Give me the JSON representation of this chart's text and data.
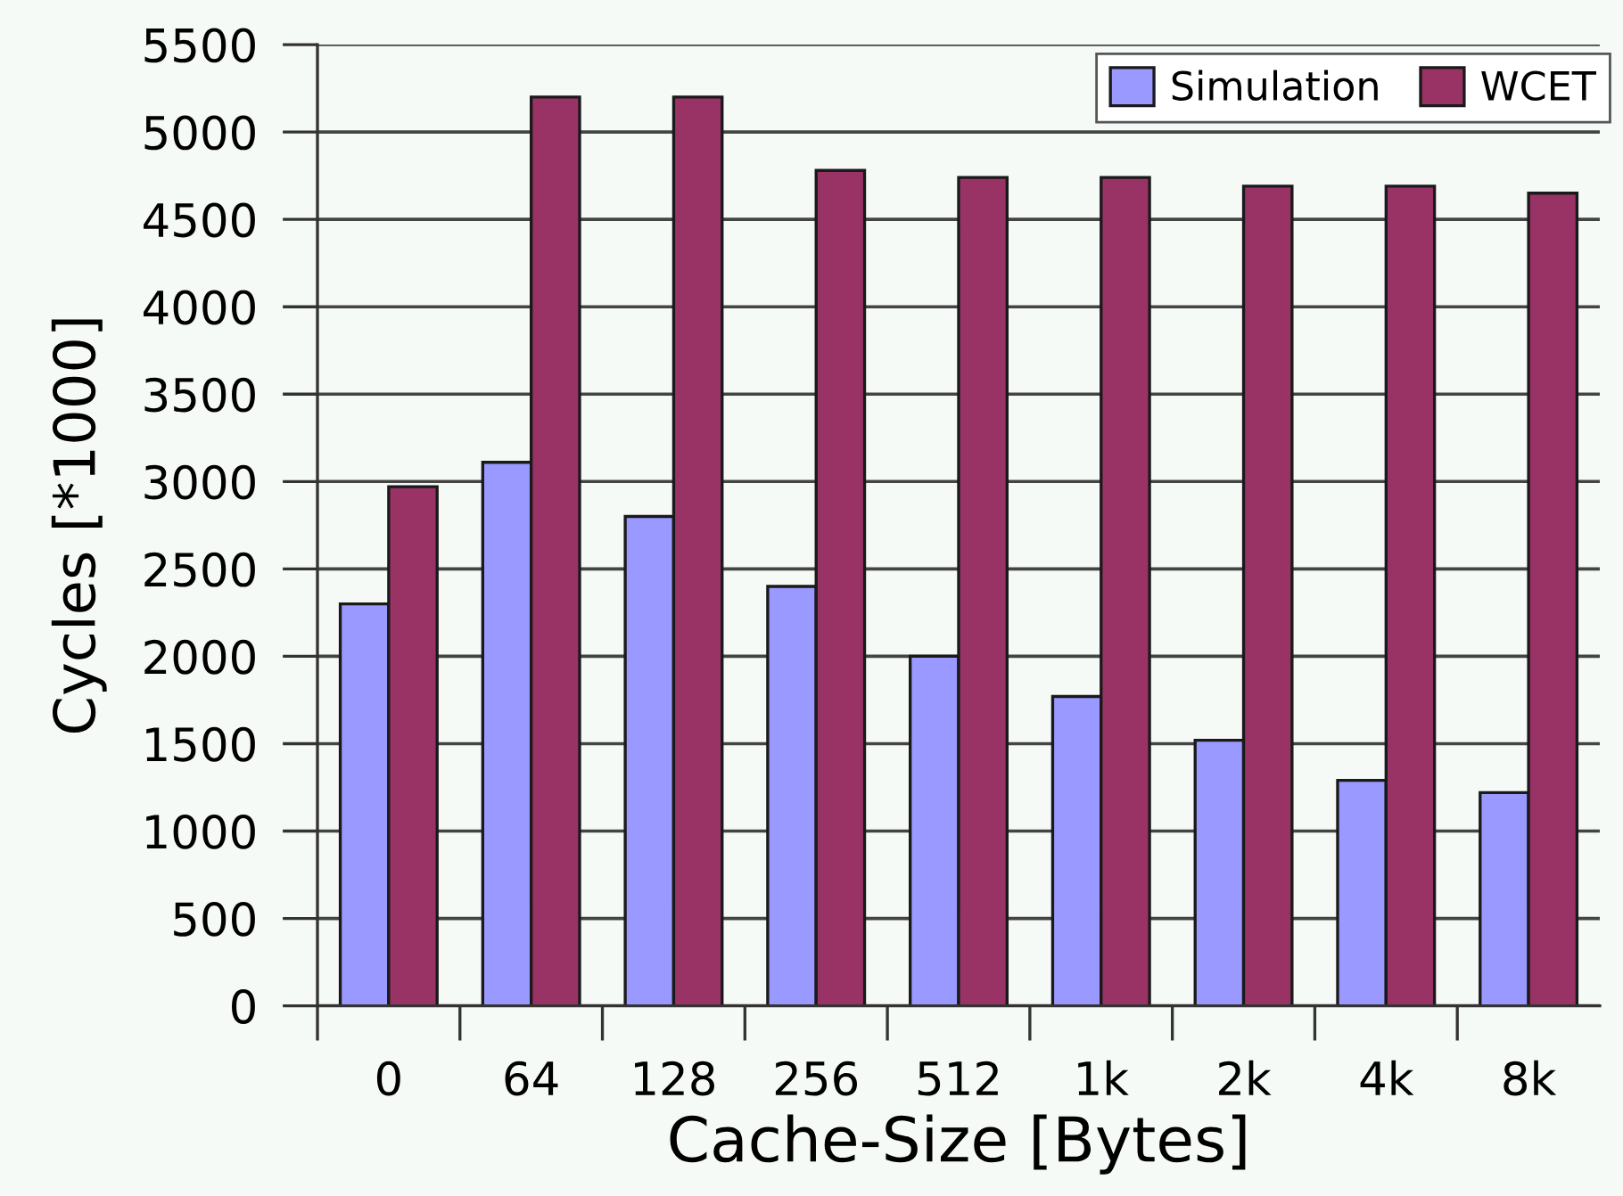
{
  "chart_data": {
    "type": "bar",
    "xlabel": "Cache-Size [Bytes]",
    "ylabel": "Cycles [*1000]",
    "categories": [
      "0",
      "64",
      "128",
      "256",
      "512",
      "1k",
      "2k",
      "4k",
      "8k"
    ],
    "series": [
      {
        "name": "Simulation",
        "color": "#9999ff",
        "values": [
          2300,
          3110,
          2800,
          2400,
          2000,
          1770,
          1520,
          1290,
          1220
        ]
      },
      {
        "name": "WCET",
        "color": "#993366",
        "values": [
          2970,
          5200,
          5200,
          4780,
          4740,
          4740,
          4690,
          4690,
          4650
        ]
      }
    ],
    "ylim": [
      0,
      5500
    ],
    "yticks": [
      0,
      500,
      1000,
      1500,
      2000,
      2500,
      3000,
      3500,
      4000,
      4500,
      5000,
      5500
    ],
    "grid": "y",
    "legend": "top right"
  }
}
